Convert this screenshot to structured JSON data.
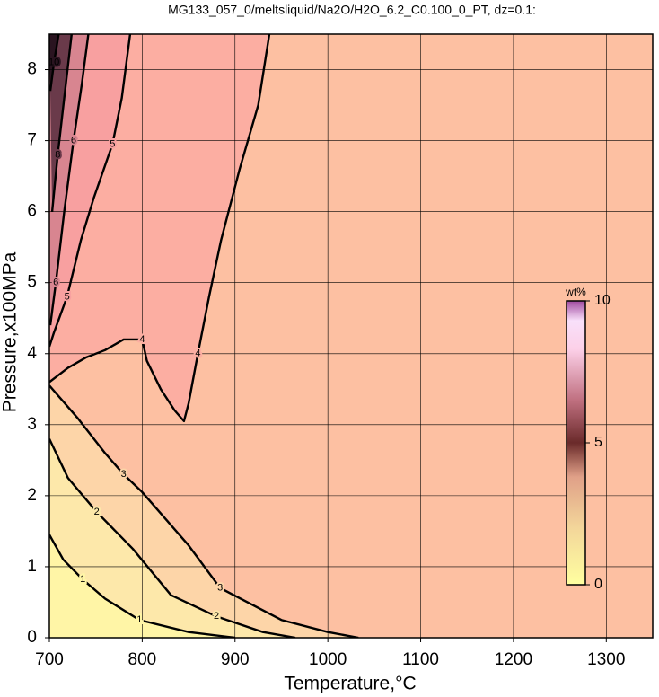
{
  "chart_data": {
    "type": "contour",
    "title": "MG133_057_0/meltsliquid/Na2O/H2O_6.2_C0.100_0_PT, dz=0.1:",
    "xlabel": "Temperature,°C",
    "ylabel": "Pressure,x100MPa",
    "xlim": [
      700,
      1350
    ],
    "ylim": [
      0,
      8.5
    ],
    "xticks": [
      700,
      800,
      900,
      1000,
      1100,
      1200,
      1300
    ],
    "yticks": [
      0,
      1,
      2,
      3,
      4,
      5,
      6,
      7,
      8
    ],
    "grid": true,
    "background": "#fdc0a2",
    "contours": [
      {
        "level": 1,
        "color": "#fff5a6",
        "x": [
          700,
          715,
          736,
          760,
          797,
          850,
          900
        ],
        "y": [
          1.45,
          1.1,
          0.82,
          0.55,
          0.25,
          0.08,
          0
        ]
      },
      {
        "level": 2,
        "color": "#fde8aa",
        "x": [
          700,
          720,
          751,
          790,
          831,
          880,
          930,
          965
        ],
        "y": [
          2.8,
          2.25,
          1.77,
          1.25,
          0.6,
          0.3,
          0.08,
          0
        ]
      },
      {
        "level": 3,
        "color": "#fdd5a8",
        "x": [
          700,
          730,
          760,
          780,
          800,
          850,
          884,
          950,
          1000,
          1033
        ],
        "y": [
          3.55,
          3.1,
          2.6,
          2.3,
          2.05,
          1.3,
          0.7,
          0.25,
          0.08,
          0
        ]
      },
      {
        "level": 4,
        "color": "#fcaea2",
        "x": [
          937,
          925,
          905,
          885,
          872,
          860,
          850,
          845,
          835,
          820,
          805,
          800,
          780,
          760,
          740,
          720,
          700
        ],
        "y": [
          8.5,
          7.5,
          6.6,
          5.6,
          4.8,
          4.0,
          3.3,
          3.05,
          3.2,
          3.5,
          3.9,
          4.2,
          4.2,
          4.05,
          3.95,
          3.8,
          3.6
        ]
      },
      {
        "level": 5,
        "color": "#f8a0a0",
        "x": [
          787,
          778,
          768,
          748,
          734,
          719,
          705,
          700
        ],
        "y": [
          8.5,
          7.6,
          6.95,
          6.2,
          5.6,
          4.8,
          4.3,
          4.1
        ]
      },
      {
        "level": 6,
        "color": "#d88590",
        "x": [
          742,
          735,
          726,
          716,
          707,
          701
        ],
        "y": [
          8.5,
          7.8,
          7.0,
          6.0,
          5.0,
          4.4
        ]
      },
      {
        "level": 8,
        "color": "#6a3a4a",
        "x": [
          724,
          716,
          709,
          703
        ],
        "y": [
          8.5,
          7.6,
          6.8,
          6.0
        ]
      },
      {
        "level": 10,
        "color": "#2a1420",
        "x": [
          710,
          705,
          701
        ],
        "y": [
          8.5,
          8.1,
          7.7
        ]
      }
    ],
    "colorbar": {
      "label": "wt%",
      "lim": [
        0,
        10
      ],
      "ticks": [
        0,
        5,
        10
      ],
      "colormap": [
        {
          "value": 0,
          "color": "#ffffa0"
        },
        {
          "value": 2,
          "color": "#f3d69a"
        },
        {
          "value": 3.8,
          "color": "#e0a088"
        },
        {
          "value": 5,
          "color": "#6a2a2a"
        },
        {
          "value": 6.5,
          "color": "#c07080"
        },
        {
          "value": 8.3,
          "color": "#fcd0e8"
        },
        {
          "value": 9.3,
          "color": "#f8e0fa"
        },
        {
          "value": 10,
          "color": "#a04aa0"
        }
      ]
    }
  }
}
